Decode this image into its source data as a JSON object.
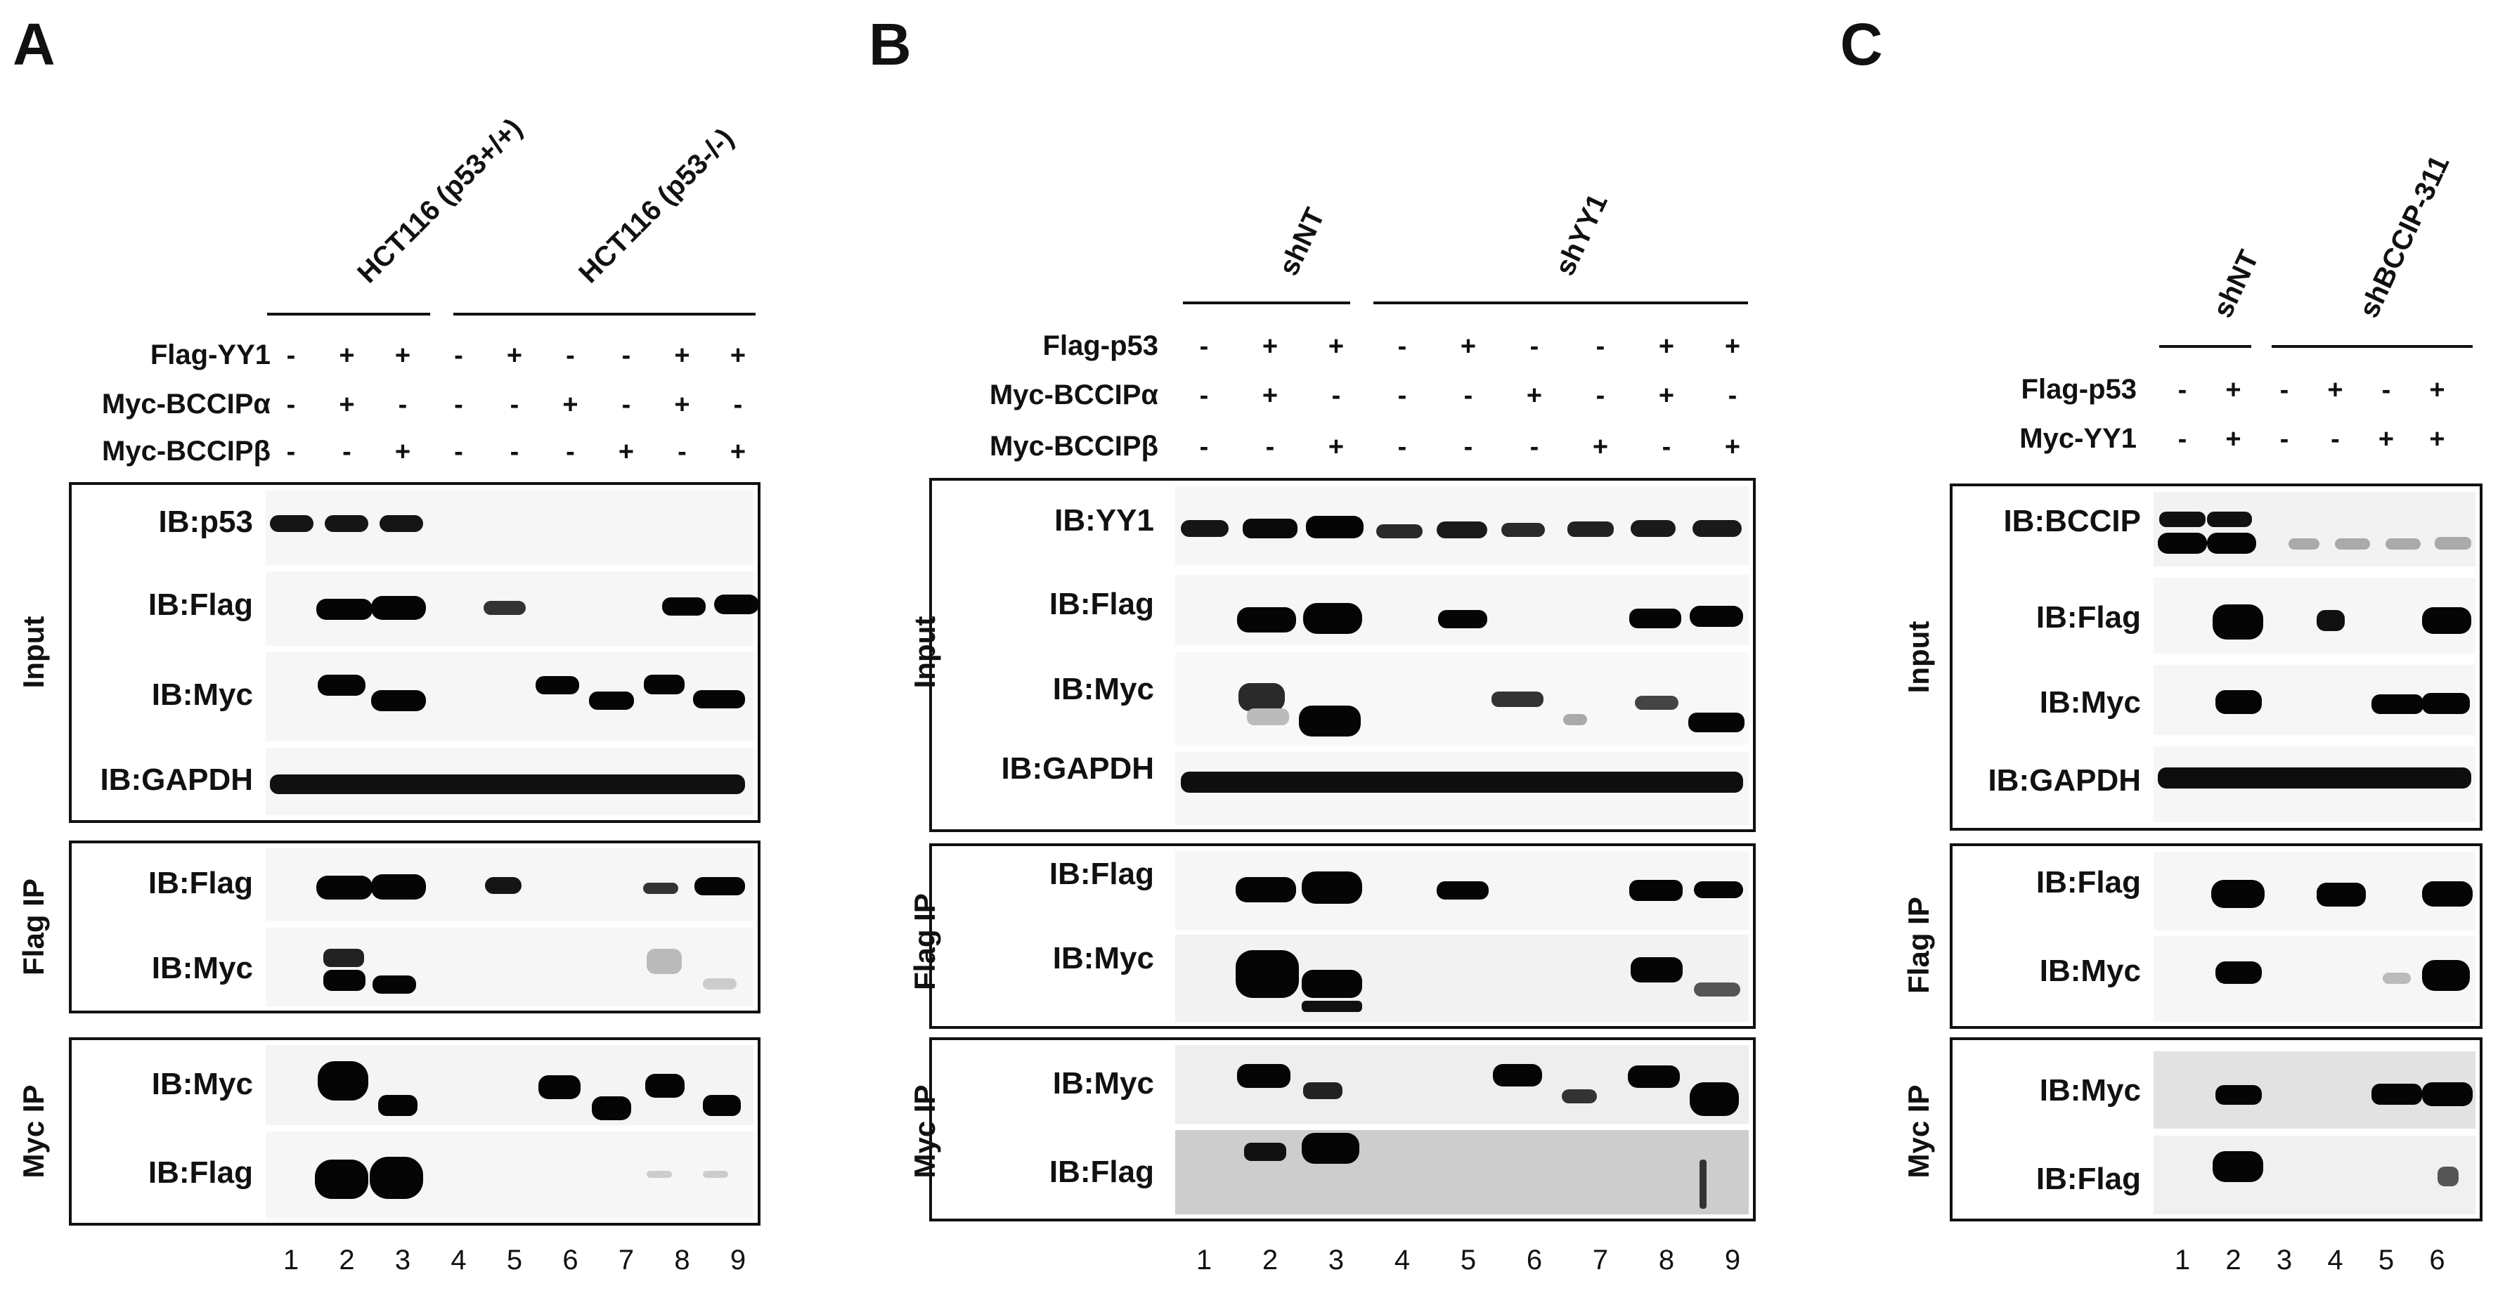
{
  "panels": [
    {
      "letter": "A",
      "groups": [
        "HCT116 (p53+/+)",
        "HCT116 (p53-/-)"
      ],
      "rows": [
        {
          "label": "Flag-YY1",
          "signs": [
            "-",
            "+",
            "+",
            "-",
            "+",
            "-",
            "-",
            "+",
            "+"
          ]
        },
        {
          "label": "Myc-BCCIPα",
          "signs": [
            "-",
            "+",
            "-",
            "-",
            "-",
            "+",
            "-",
            "+",
            "-"
          ]
        },
        {
          "label": "Myc-BCCIPβ",
          "signs": [
            "-",
            "-",
            "+",
            "-",
            "-",
            "-",
            "+",
            "-",
            "+"
          ]
        }
      ],
      "sections": [
        {
          "label": "Input",
          "blots": [
            "IB:p53",
            "IB:Flag",
            "IB:Myc",
            "IB:GAPDH"
          ]
        },
        {
          "label": "Flag IP",
          "blots": [
            "IB:Flag",
            "IB:Myc"
          ]
        },
        {
          "label": "Myc IP",
          "blots": [
            "IB:Myc",
            "IB:Flag"
          ]
        }
      ],
      "lanes": [
        "1",
        "2",
        "3",
        "4",
        "5",
        "6",
        "7",
        "8",
        "9"
      ]
    },
    {
      "letter": "B",
      "groups": [
        "shNT",
        "shYY1"
      ],
      "rows": [
        {
          "label": "Flag-p53",
          "signs": [
            "-",
            "+",
            "+",
            "-",
            "+",
            "-",
            "-",
            "+",
            "+"
          ]
        },
        {
          "label": "Myc-BCCIPα",
          "signs": [
            "-",
            "+",
            "-",
            "-",
            "-",
            "+",
            "-",
            "+",
            "-"
          ]
        },
        {
          "label": "Myc-BCCIPβ",
          "signs": [
            "-",
            "-",
            "+",
            "-",
            "-",
            "-",
            "+",
            "-",
            "+"
          ]
        }
      ],
      "sections": [
        {
          "label": "Input",
          "blots": [
            "IB:YY1",
            "IB:Flag",
            "IB:Myc",
            "IB:GAPDH"
          ]
        },
        {
          "label": "Flag IP",
          "blots": [
            "IB:Flag",
            "IB:Myc"
          ]
        },
        {
          "label": "Myc IP",
          "blots": [
            "IB:Myc",
            "IB:Flag"
          ]
        }
      ],
      "lanes": [
        "1",
        "2",
        "3",
        "4",
        "5",
        "6",
        "7",
        "8",
        "9"
      ]
    },
    {
      "letter": "C",
      "groups": [
        "shNT",
        "shBCCIP-311"
      ],
      "rows": [
        {
          "label": "Flag-p53",
          "signs": [
            "-",
            "+",
            "-",
            "+",
            "-",
            "+"
          ]
        },
        {
          "label": "Myc-YY1",
          "signs": [
            "-",
            "+",
            "-",
            "-",
            "+",
            "+"
          ]
        }
      ],
      "sections": [
        {
          "label": "Input",
          "blots": [
            "IB:BCCIP",
            "IB:Flag",
            "IB:Myc",
            "IB:GAPDH"
          ]
        },
        {
          "label": "Flag IP",
          "blots": [
            "IB:Flag",
            "IB:Myc"
          ]
        },
        {
          "label": "Myc IP",
          "blots": [
            "IB:Myc",
            "IB:Flag"
          ]
        }
      ],
      "lanes": [
        "1",
        "2",
        "3",
        "4",
        "5",
        "6"
      ]
    }
  ]
}
